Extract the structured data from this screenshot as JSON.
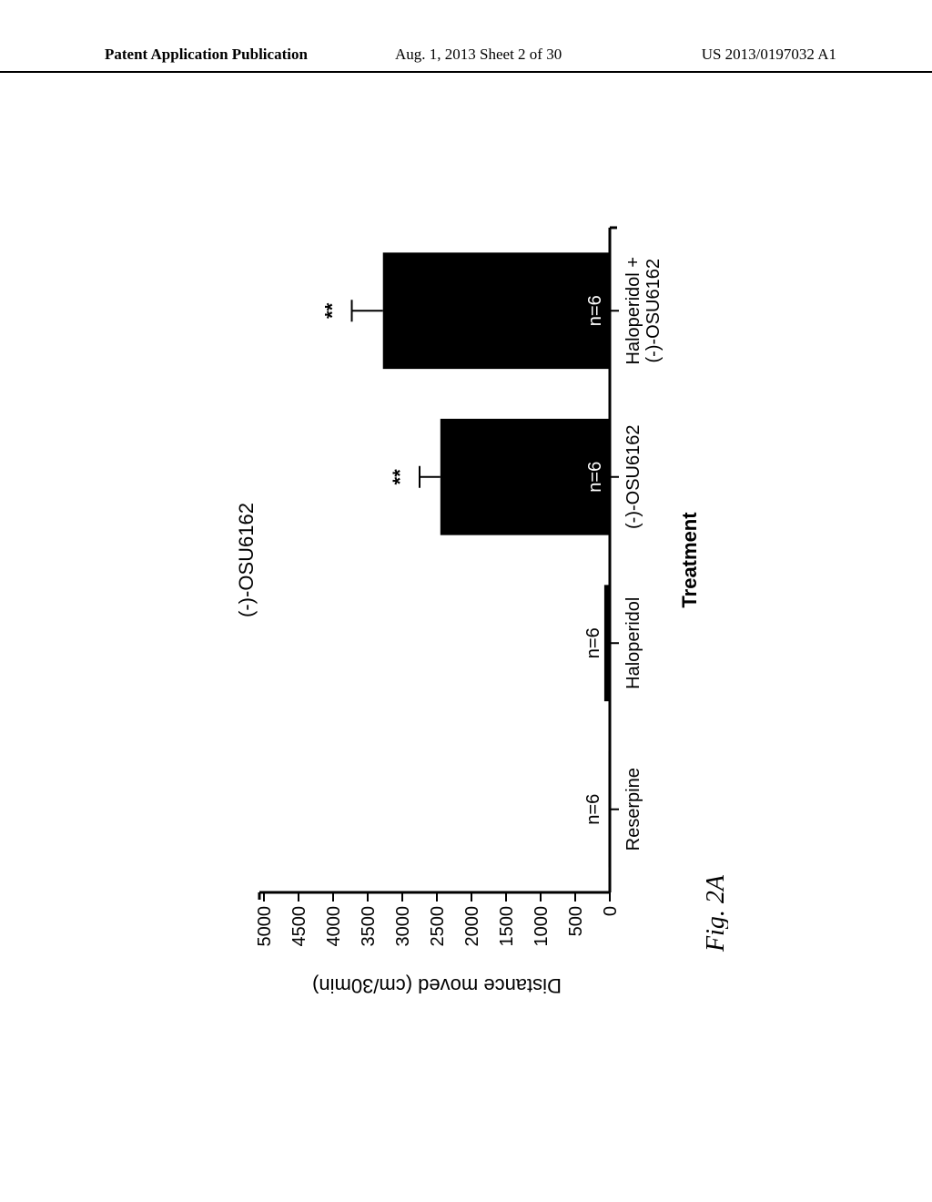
{
  "header": {
    "left": "Patent Application Publication",
    "center": "Aug. 1, 2013  Sheet 2 of 30",
    "right": "US 2013/0197032 A1"
  },
  "figure": {
    "label": "Fig. 2A",
    "chart": {
      "type": "bar",
      "title": "(-)-OSU6162",
      "title_fontsize": 22,
      "ylabel": "Distance moved (cm/30min)",
      "xlabel": "Treatment",
      "label_fontsize": 22,
      "ylim": [
        0,
        5000
      ],
      "ytick_step": 500,
      "yticks": [
        0,
        500,
        1000,
        1500,
        2000,
        2500,
        3000,
        3500,
        4000,
        4500,
        5000
      ],
      "categories": [
        "Reserpine",
        "Haloperidol",
        "(-)-OSU6162",
        "Haloperidol +\n(-)-OSU6162"
      ],
      "values": [
        20,
        80,
        2450,
        3280
      ],
      "errors": [
        0,
        0,
        300,
        450
      ],
      "n_labels": [
        "n=6",
        "n=6",
        "n=6",
        "n=6"
      ],
      "significance": [
        "",
        "",
        "**",
        "**"
      ],
      "bar_colors": [
        "#000000",
        "#000000",
        "#000000",
        "#000000"
      ],
      "background_color": "#ffffff",
      "axis_color": "#000000",
      "text_color": "#000000",
      "bar_width": 0.7,
      "tick_font_size": 20,
      "n_label_font_size": 20,
      "sig_font_size": 22,
      "axis_stroke_width": 3,
      "error_bar_width": 2
    }
  }
}
